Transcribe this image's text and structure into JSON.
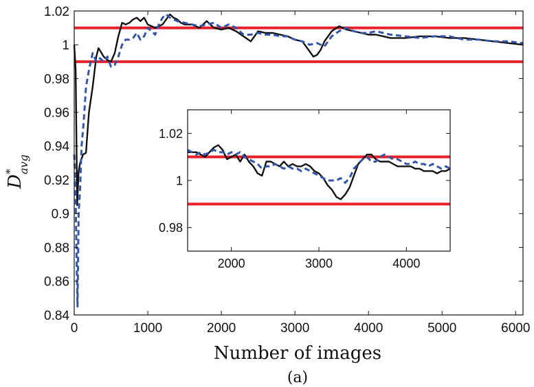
{
  "chart_data": [
    {
      "type": "line",
      "title": "",
      "xlabel": "Number of images",
      "ylabel_main": "D",
      "ylabel_sup": "*",
      "ylabel_sub": "avg",
      "caption": "(a)",
      "xlim": [
        0,
        6100
      ],
      "ylim": [
        0.84,
        1.02
      ],
      "xticks": [
        "0",
        "1000",
        "2000",
        "3000",
        "4000",
        "5000",
        "6000"
      ],
      "xtick_values": [
        0,
        1000,
        2000,
        3000,
        4000,
        5000,
        6000
      ],
      "yticks": [
        "0.84",
        "0.86",
        "0.88",
        "0.9",
        "0.92",
        "0.94",
        "0.96",
        "0.98",
        "1",
        "1.02"
      ],
      "ytick_values": [
        0.84,
        0.86,
        0.88,
        0.9,
        0.92,
        0.94,
        0.96,
        0.98,
        1.0,
        1.02
      ],
      "grid": false,
      "reference_lines": [
        {
          "y": 1.01,
          "color": "#e8202a"
        },
        {
          "y": 0.99,
          "color": "#e8202a"
        }
      ],
      "series": [
        {
          "style": "solid",
          "color": "#111111",
          "x": [
            0,
            20,
            40,
            60,
            80,
            120,
            160,
            200,
            250,
            300,
            330,
            360,
            400,
            450,
            500,
            550,
            600,
            650,
            700,
            750,
            800,
            850,
            900,
            950,
            1000,
            1100,
            1200,
            1300,
            1350,
            1400,
            1450,
            1500,
            1600,
            1700,
            1800,
            1900,
            2000,
            2100,
            2200,
            2300,
            2400,
            2500,
            2600,
            2700,
            2800,
            2900,
            3000,
            3100,
            3200,
            3250,
            3300,
            3350,
            3400,
            3500,
            3600,
            3700,
            3800,
            3900,
            4000,
            4100,
            4200,
            4300,
            4400,
            4500,
            4700,
            4900,
            5100,
            5300,
            5500,
            5700,
            5900,
            6100
          ],
          "y": [
            1.0,
            0.985,
            0.905,
            0.925,
            0.93,
            0.935,
            0.936,
            0.96,
            0.975,
            0.993,
            0.998,
            0.996,
            0.993,
            0.991,
            0.99,
            0.995,
            1.005,
            1.013,
            1.012,
            1.013,
            1.015,
            1.016,
            1.014,
            1.016,
            1.012,
            1.01,
            1.012,
            1.018,
            1.016,
            1.015,
            1.013,
            1.012,
            1.012,
            1.01,
            1.014,
            1.01,
            1.009,
            1.01,
            1.008,
            1.005,
            1.002,
            1.008,
            1.007,
            1.007,
            1.006,
            1.005,
            1.003,
            1.002,
            0.996,
            0.993,
            0.994,
            0.997,
            1.002,
            1.008,
            1.011,
            1.009,
            1.008,
            1.007,
            1.006,
            1.006,
            1.005,
            1.004,
            1.004,
            1.004,
            1.005,
            1.005,
            1.004,
            1.004,
            1.003,
            1.002,
            1.001,
            1.0
          ]
        },
        {
          "style": "dashed",
          "color": "#3355aa",
          "x": [
            0,
            15,
            30,
            45,
            60,
            80,
            100,
            130,
            160,
            200,
            250,
            300,
            350,
            400,
            450,
            500,
            550,
            600,
            650,
            700,
            750,
            800,
            850,
            900,
            950,
            1000,
            1100,
            1150,
            1200,
            1250,
            1300,
            1400,
            1500,
            1600,
            1700,
            1800,
            1900,
            2000,
            2100,
            2200,
            2300,
            2400,
            2500,
            2600,
            2700,
            2800,
            2900,
            3000,
            3100,
            3200,
            3300,
            3400,
            3500,
            3600,
            3700,
            3800,
            3900,
            4000,
            4100,
            4200,
            4300,
            4500,
            4700,
            4900,
            5100,
            5300,
            5500,
            5700,
            5900,
            6100
          ],
          "y": [
            0.935,
            0.92,
            0.88,
            0.845,
            0.9,
            0.915,
            0.94,
            0.955,
            0.975,
            0.985,
            0.995,
            0.99,
            0.992,
            0.99,
            0.993,
            0.987,
            0.988,
            0.993,
            1.0,
            1.003,
            1.003,
            1.004,
            1.007,
            1.003,
            1.005,
            1.01,
            1.006,
            1.012,
            1.016,
            1.018,
            1.016,
            1.014,
            1.013,
            1.012,
            1.011,
            1.012,
            1.013,
            1.01,
            1.012,
            1.01,
            1.006,
            1.006,
            1.007,
            1.006,
            1.006,
            1.005,
            1.005,
            1.003,
            1.002,
            1.0,
            1.001,
            0.999,
            1.005,
            1.008,
            1.01,
            1.008,
            1.007,
            1.007,
            1.008,
            1.007,
            1.006,
            1.005,
            1.004,
            1.005,
            1.005,
            1.003,
            1.003,
            1.002,
            1.002,
            1.001
          ]
        }
      ]
    },
    {
      "type": "line",
      "title": "",
      "xlim": [
        1500,
        4500
      ],
      "ylim": [
        0.97,
        1.03
      ],
      "xticks": [
        "2000",
        "3000",
        "4000"
      ],
      "xtick_values": [
        2000,
        3000,
        4000
      ],
      "yticks": [
        "0.98",
        "1",
        "1.02"
      ],
      "ytick_values": [
        0.98,
        1.0,
        1.02
      ],
      "grid": false,
      "reference_lines": [
        {
          "y": 1.01,
          "color": "#e8202a"
        },
        {
          "y": 0.99,
          "color": "#e8202a"
        }
      ],
      "series": [
        {
          "style": "solid",
          "color": "#111111",
          "x": [
            1500,
            1550,
            1600,
            1650,
            1700,
            1750,
            1800,
            1850,
            1900,
            1950,
            2000,
            2050,
            2100,
            2150,
            2200,
            2250,
            2300,
            2350,
            2400,
            2450,
            2500,
            2550,
            2600,
            2650,
            2700,
            2750,
            2800,
            2850,
            2900,
            2950,
            3000,
            3050,
            3100,
            3150,
            3200,
            3250,
            3300,
            3350,
            3400,
            3450,
            3500,
            3550,
            3600,
            3650,
            3700,
            3750,
            3800,
            3850,
            3900,
            3950,
            4000,
            4050,
            4100,
            4150,
            4200,
            4250,
            4300,
            4350,
            4400,
            4450,
            4500
          ],
          "y": [
            1.012,
            1.012,
            1.012,
            1.011,
            1.01,
            1.012,
            1.014,
            1.015,
            1.013,
            1.009,
            1.01,
            1.011,
            1.008,
            1.011,
            1.008,
            1.006,
            1.003,
            1.002,
            1.008,
            1.008,
            1.007,
            1.006,
            1.008,
            1.006,
            1.007,
            1.006,
            1.006,
            1.007,
            1.006,
            1.004,
            1.003,
            1.001,
            0.998,
            0.996,
            0.993,
            0.992,
            0.994,
            0.997,
            1.002,
            1.007,
            1.009,
            1.011,
            1.011,
            1.009,
            1.008,
            1.008,
            1.008,
            1.007,
            1.006,
            1.006,
            1.006,
            1.006,
            1.005,
            1.005,
            1.004,
            1.004,
            1.004,
            1.003,
            1.004,
            1.004,
            1.005
          ]
        },
        {
          "style": "dashed",
          "color": "#3355aa",
          "x": [
            1500,
            1550,
            1600,
            1650,
            1700,
            1750,
            1800,
            1850,
            1900,
            1950,
            2000,
            2050,
            2100,
            2150,
            2200,
            2250,
            2300,
            2350,
            2400,
            2450,
            2500,
            2550,
            2600,
            2650,
            2700,
            2750,
            2800,
            2850,
            2900,
            2950,
            3000,
            3050,
            3100,
            3150,
            3200,
            3250,
            3300,
            3350,
            3400,
            3450,
            3500,
            3550,
            3600,
            3650,
            3700,
            3750,
            3800,
            3850,
            3900,
            3950,
            4000,
            4050,
            4100,
            4150,
            4200,
            4250,
            4300,
            4350,
            4400,
            4450,
            4500
          ],
          "y": [
            1.013,
            1.012,
            1.011,
            1.012,
            1.011,
            1.012,
            1.013,
            1.012,
            1.012,
            1.011,
            1.012,
            1.011,
            1.012,
            1.01,
            1.009,
            1.008,
            1.007,
            1.005,
            1.006,
            1.006,
            1.007,
            1.006,
            1.005,
            1.006,
            1.005,
            1.005,
            1.004,
            1.005,
            1.004,
            1.003,
            1.002,
            1.001,
            1.0,
            1.0,
            1.0,
            1.001,
            0.999,
            1.001,
            1.005,
            1.007,
            1.009,
            1.01,
            1.008,
            1.008,
            1.01,
            1.011,
            1.01,
            1.009,
            1.009,
            1.008,
            1.007,
            1.007,
            1.008,
            1.007,
            1.007,
            1.006,
            1.007,
            1.006,
            1.005,
            1.006,
            1.005
          ]
        }
      ]
    }
  ]
}
